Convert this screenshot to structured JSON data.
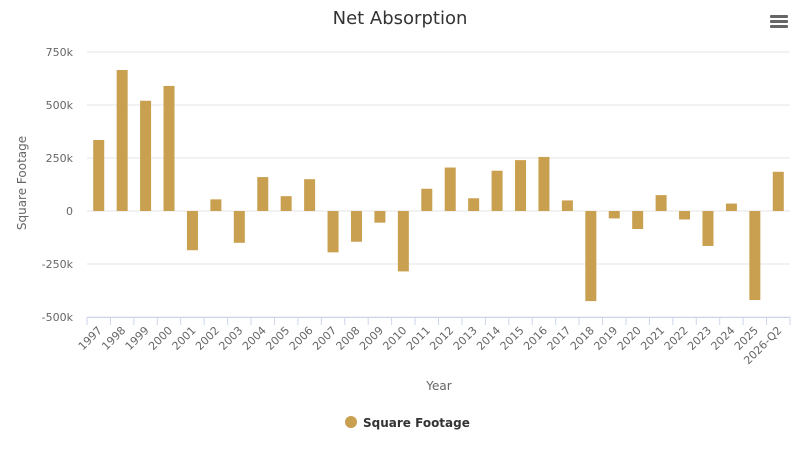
{
  "chart_data": {
    "type": "bar",
    "title": "Net Absorption",
    "xlabel": "Year",
    "ylabel": "Square Footage",
    "ylim": [
      -500000,
      750000
    ],
    "yticks": [
      {
        "value": 750000,
        "label": "750k"
      },
      {
        "value": 500000,
        "label": "500k"
      },
      {
        "value": 250000,
        "label": "250k"
      },
      {
        "value": 0,
        "label": "0"
      },
      {
        "value": -250000,
        "label": "-250k"
      },
      {
        "value": -500000,
        "label": "-500k"
      }
    ],
    "grid": true,
    "legend_position": "bottom-center",
    "categories": [
      "1997",
      "1998",
      "1999",
      "2000",
      "2001",
      "2002",
      "2003",
      "2004",
      "2005",
      "2006",
      "2007",
      "2008",
      "2009",
      "2010",
      "2011",
      "2012",
      "2013",
      "2014",
      "2015",
      "2016",
      "2017",
      "2018",
      "2019",
      "2020",
      "2021",
      "2022",
      "2023",
      "2024",
      "2025",
      "2026-Q2"
    ],
    "series": [
      {
        "name": "Square Footage",
        "color": "#c9a050",
        "values": [
          335000,
          665000,
          520000,
          590000,
          -185000,
          55000,
          -150000,
          160000,
          70000,
          150000,
          -195000,
          -145000,
          -55000,
          -285000,
          105000,
          205000,
          60000,
          190000,
          240000,
          255000,
          50000,
          -425000,
          -35000,
          -85000,
          75000,
          -40000,
          -165000,
          35000,
          -420000,
          185000
        ]
      }
    ]
  },
  "toolbar": {
    "menu_icon": "hamburger-menu-icon"
  }
}
